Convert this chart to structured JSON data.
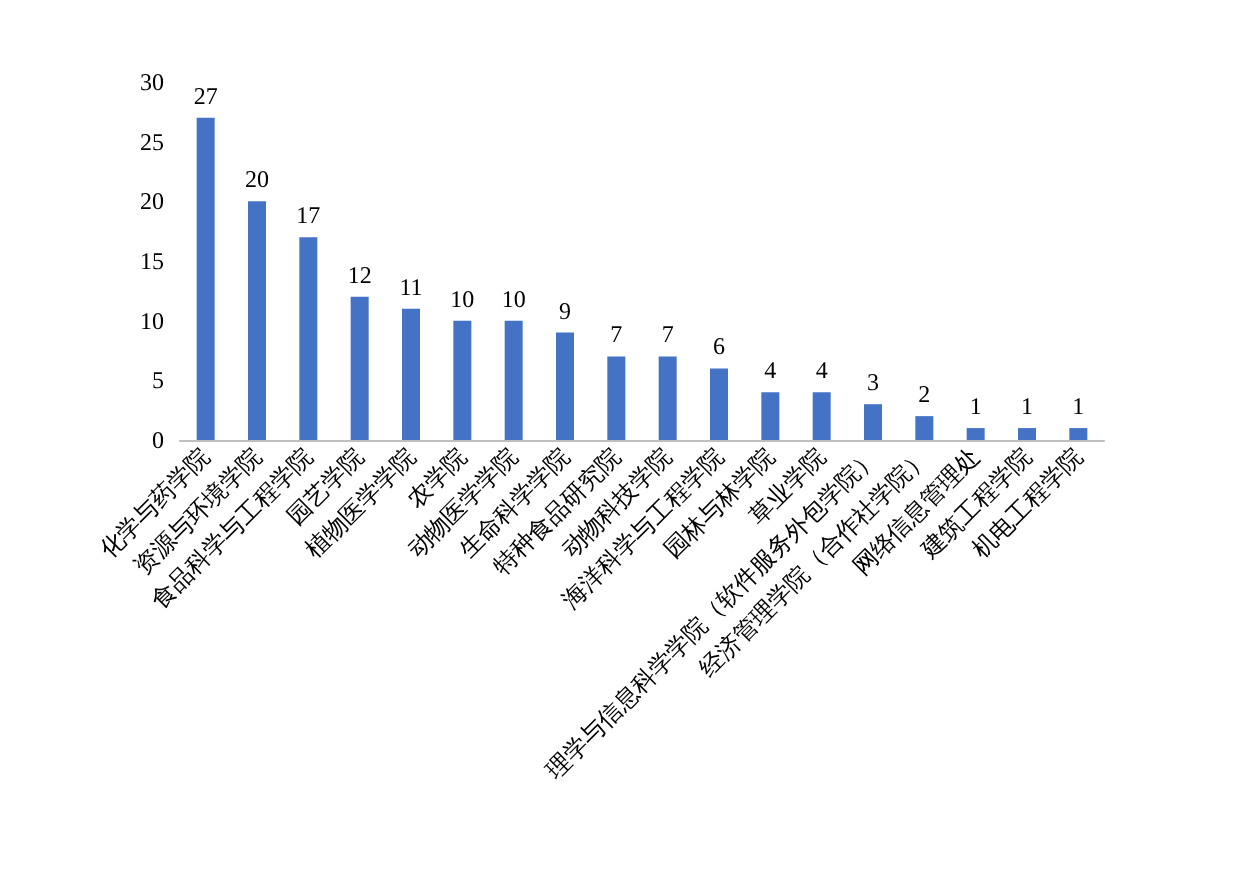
{
  "chart_data": {
    "type": "bar",
    "categories": [
      "化学与药学院",
      "资源与环境学院",
      "食品科学与工程学院",
      "园艺学院",
      "植物医学学院",
      "农学院",
      "动物医学学院",
      "生命科学学院",
      "特种食品研究院",
      "动物科技学院",
      "海洋科学与工程学院",
      "园林与林学院",
      "草业学院",
      "理学与信息科学学院（软件服务外包学院）",
      "经济管理学院（合作社学院）",
      "网络信息管理处",
      "建筑工程学院",
      "机电工程学院"
    ],
    "values": [
      27,
      20,
      17,
      12,
      11,
      10,
      10,
      9,
      7,
      7,
      6,
      4,
      4,
      3,
      2,
      1,
      1,
      1
    ],
    "color": "#4472c4",
    "ylim": [
      0,
      30
    ],
    "yticks": [
      0,
      5,
      10,
      15,
      20,
      25,
      30
    ],
    "data_labels": true,
    "grid": false
  }
}
